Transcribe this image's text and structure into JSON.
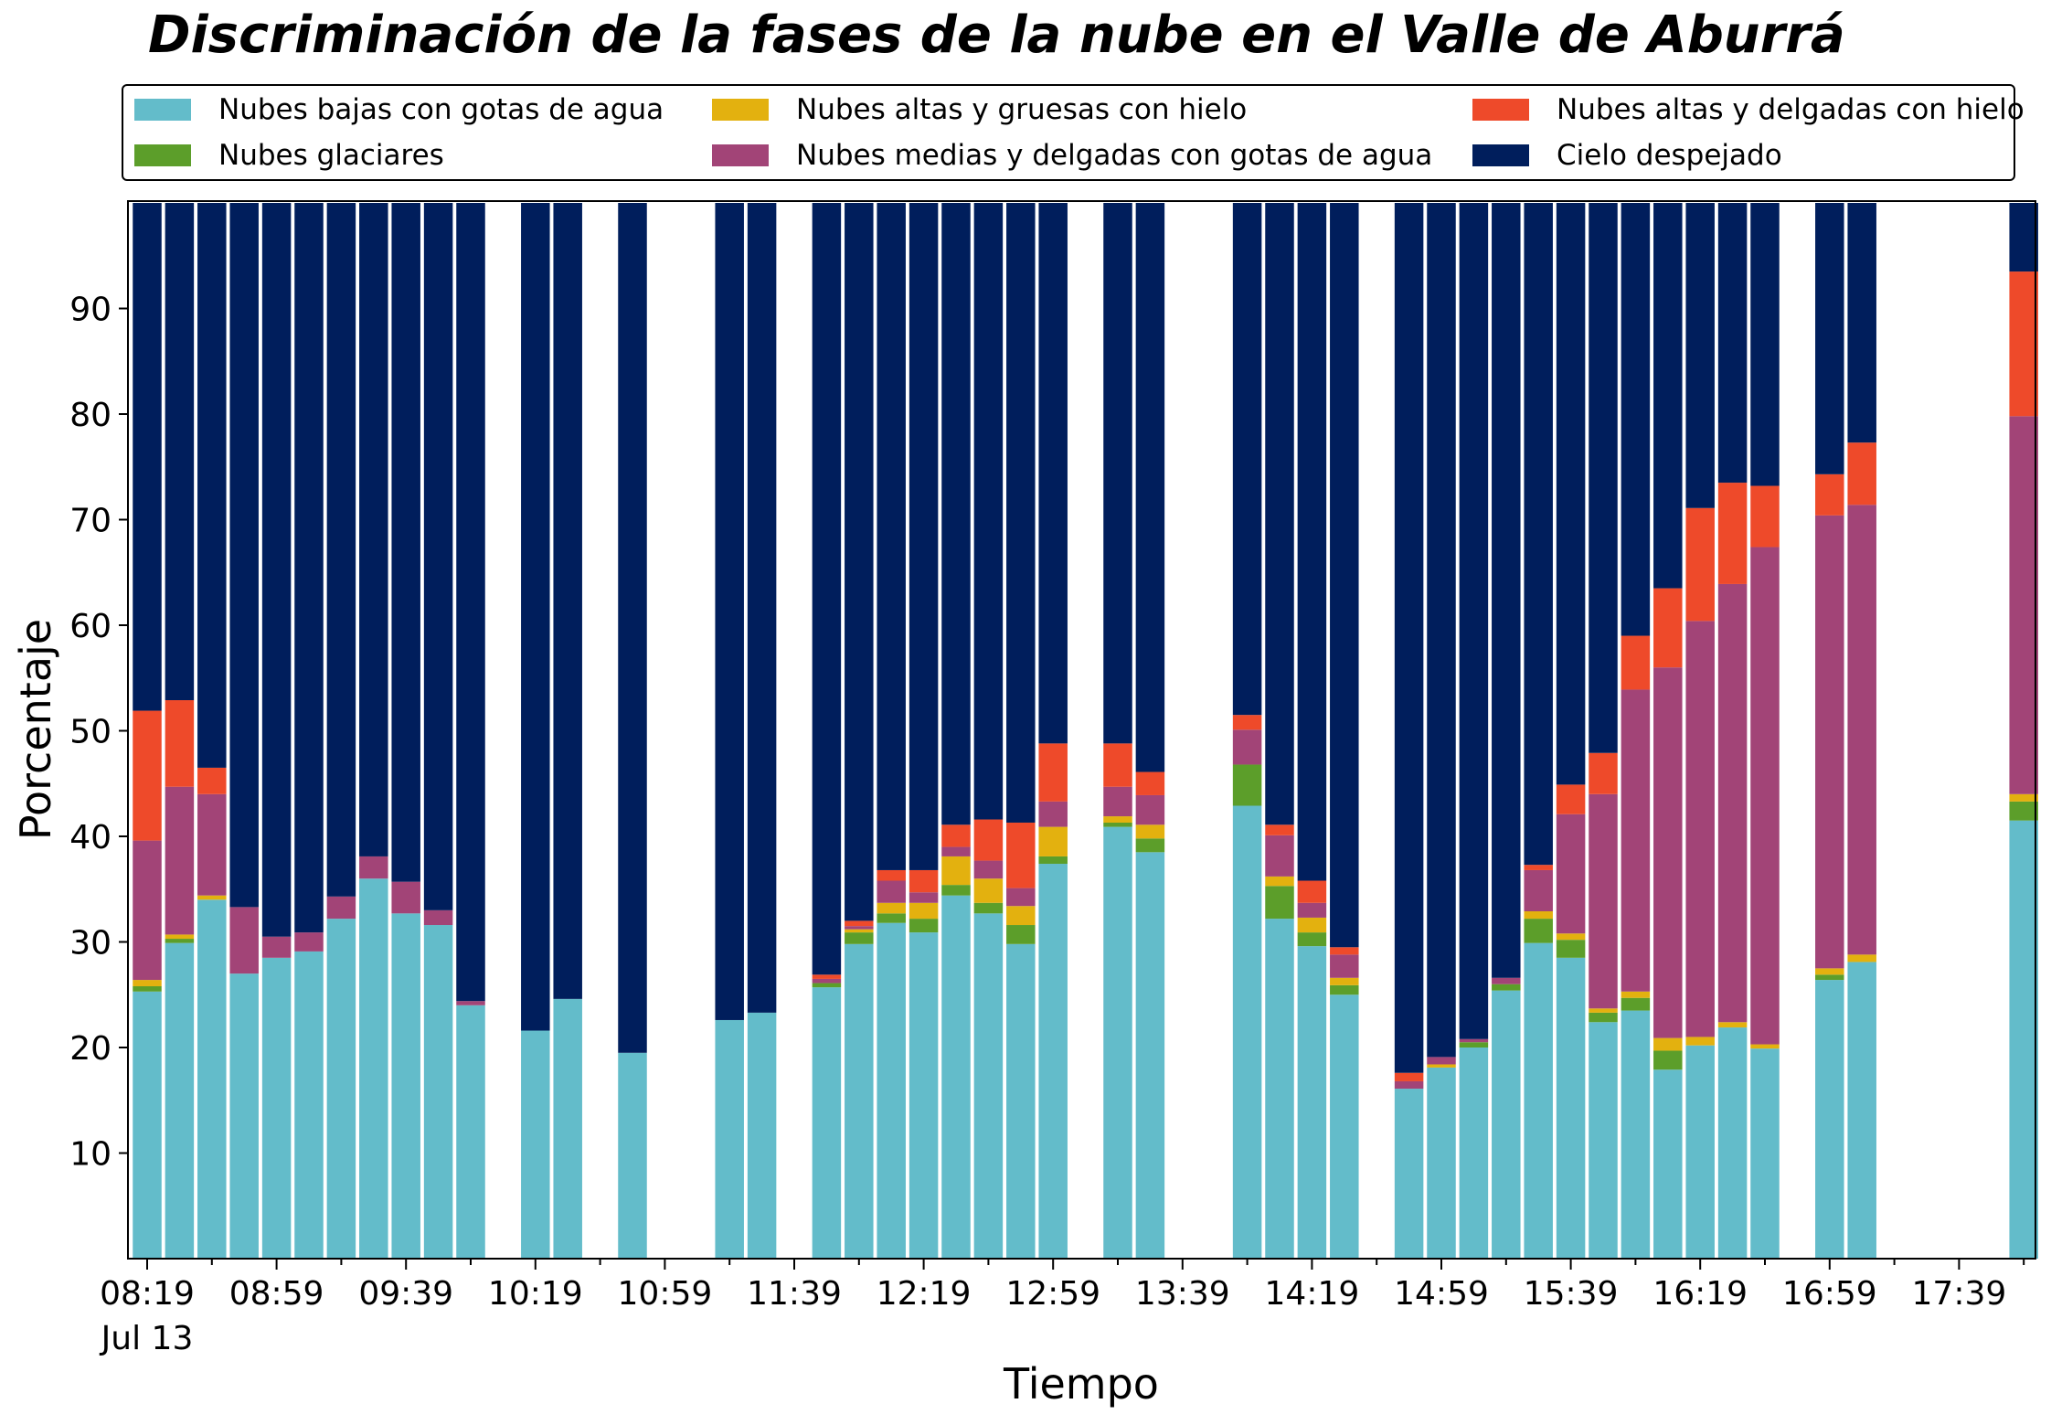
{
  "chart_data": {
    "type": "bar",
    "stacked": true,
    "title": "Discriminación de la fases de la nube en el Valle de Aburrá",
    "xlabel": "Tiempo",
    "ylabel": "Porcentaje",
    "ylim": [
      0,
      100
    ],
    "yticks": [
      10,
      20,
      30,
      40,
      50,
      60,
      70,
      80,
      90
    ],
    "x_tick_labels": [
      "08:19",
      "08:59",
      "09:39",
      "10:19",
      "10:59",
      "11:39",
      "12:19",
      "12:59",
      "13:39",
      "14:19",
      "14:59",
      "15:39",
      "16:19",
      "16:59",
      "17:39"
    ],
    "x_date_label": "Jul 13",
    "x_interval_minutes": 10,
    "legend_placement": "top, 3 columns",
    "grid": false,
    "series": [
      {
        "name": "Nubes bajas con gotas de agua",
        "color": "#63bcca"
      },
      {
        "name": "Nubes glaciares",
        "color": "#5c9e2a"
      },
      {
        "name": "Nubes altas y gruesas con hielo",
        "color": "#e3b10f"
      },
      {
        "name": "Nubes medias y delgadas con gotas de agua",
        "color": "#a24477"
      },
      {
        "name": "Nubes altas y delgadas con hielo",
        "color": "#ee4a2a"
      },
      {
        "name": "Cielo despejado",
        "color": "#001e5c"
      }
    ],
    "bars": [
      {
        "time": "08:19",
        "values": [
          25.3,
          0.5,
          0.6,
          13.2,
          12.3,
          48.1
        ]
      },
      {
        "time": "08:29",
        "values": [
          29.9,
          0.4,
          0.4,
          14.0,
          8.2,
          47.1
        ]
      },
      {
        "time": "08:39",
        "values": [
          34.0,
          0.0,
          0.4,
          9.6,
          2.5,
          53.5
        ]
      },
      {
        "time": "08:49",
        "values": [
          27.0,
          0.0,
          0.0,
          6.3,
          0.0,
          66.7
        ]
      },
      {
        "time": "08:59",
        "values": [
          28.5,
          0.0,
          0.0,
          2.0,
          0.0,
          69.5
        ]
      },
      {
        "time": "09:09",
        "values": [
          29.1,
          0.0,
          0.0,
          1.8,
          0.0,
          69.1
        ]
      },
      {
        "time": "09:19",
        "values": [
          32.2,
          0.0,
          0.0,
          2.1,
          0.0,
          65.7
        ]
      },
      {
        "time": "09:29",
        "values": [
          36.0,
          0.0,
          0.0,
          2.1,
          0.0,
          61.9
        ]
      },
      {
        "time": "09:39",
        "values": [
          32.7,
          0.0,
          0.0,
          3.0,
          0.0,
          64.3
        ]
      },
      {
        "time": "09:49",
        "values": [
          31.6,
          0.0,
          0.0,
          1.4,
          0.0,
          67.0
        ]
      },
      {
        "time": "09:59",
        "values": [
          24.0,
          0.0,
          0.0,
          0.4,
          0.0,
          75.6
        ]
      },
      {
        "time": "10:19",
        "values": [
          21.6,
          0.0,
          0.0,
          0.0,
          0.0,
          78.4
        ]
      },
      {
        "time": "10:29",
        "values": [
          24.6,
          0.0,
          0.0,
          0.0,
          0.0,
          75.4
        ]
      },
      {
        "time": "10:49",
        "values": [
          19.5,
          0.0,
          0.0,
          0.0,
          0.0,
          80.5
        ]
      },
      {
        "time": "11:19",
        "values": [
          22.6,
          0.0,
          0.0,
          0.0,
          0.0,
          77.4
        ]
      },
      {
        "time": "11:29",
        "values": [
          23.3,
          0.0,
          0.0,
          0.0,
          0.0,
          76.7
        ]
      },
      {
        "time": "11:49",
        "values": [
          25.7,
          0.4,
          0.0,
          0.4,
          0.4,
          73.1
        ]
      },
      {
        "time": "11:59",
        "values": [
          29.8,
          1.1,
          0.3,
          0.3,
          0.5,
          68.0
        ]
      },
      {
        "time": "12:09",
        "values": [
          31.8,
          0.9,
          1.0,
          2.1,
          1.0,
          63.2
        ]
      },
      {
        "time": "12:19",
        "values": [
          30.9,
          1.3,
          1.5,
          1.0,
          2.1,
          63.2
        ]
      },
      {
        "time": "12:29",
        "values": [
          34.4,
          1.0,
          2.7,
          0.9,
          2.1,
          58.9
        ]
      },
      {
        "time": "12:39",
        "values": [
          32.7,
          1.0,
          2.3,
          1.7,
          3.9,
          58.4
        ]
      },
      {
        "time": "12:49",
        "values": [
          29.8,
          1.8,
          1.8,
          1.7,
          6.2,
          58.7
        ]
      },
      {
        "time": "12:59",
        "values": [
          37.4,
          0.7,
          2.8,
          2.4,
          5.5,
          51.2
        ]
      },
      {
        "time": "13:19",
        "values": [
          40.9,
          0.4,
          0.6,
          2.8,
          4.1,
          51.2
        ]
      },
      {
        "time": "13:29",
        "values": [
          38.5,
          1.3,
          1.3,
          2.8,
          2.2,
          53.9
        ]
      },
      {
        "time": "13:59",
        "values": [
          42.9,
          3.9,
          0.0,
          3.3,
          1.4,
          48.5
        ]
      },
      {
        "time": "14:09",
        "values": [
          32.2,
          3.1,
          0.9,
          3.9,
          1.0,
          58.9
        ]
      },
      {
        "time": "14:19",
        "values": [
          29.6,
          1.3,
          1.4,
          1.4,
          2.1,
          64.2
        ]
      },
      {
        "time": "14:29",
        "values": [
          25.0,
          0.9,
          0.7,
          2.2,
          0.7,
          70.5
        ]
      },
      {
        "time": "14:49",
        "values": [
          16.1,
          0.0,
          0.0,
          0.7,
          0.8,
          82.4
        ]
      },
      {
        "time": "14:59",
        "values": [
          18.1,
          0.0,
          0.3,
          0.7,
          0.0,
          80.9
        ]
      },
      {
        "time": "15:09",
        "values": [
          20.0,
          0.5,
          0.0,
          0.3,
          0.0,
          79.2
        ]
      },
      {
        "time": "15:19",
        "values": [
          25.4,
          0.6,
          0.0,
          0.6,
          0.0,
          73.4
        ]
      },
      {
        "time": "15:29",
        "values": [
          29.9,
          2.3,
          0.7,
          3.9,
          0.5,
          62.7
        ]
      },
      {
        "time": "15:39",
        "values": [
          28.5,
          1.7,
          0.6,
          11.3,
          2.8,
          55.1
        ]
      },
      {
        "time": "15:49",
        "values": [
          22.4,
          0.9,
          0.4,
          20.3,
          3.9,
          52.1
        ]
      },
      {
        "time": "15:59",
        "values": [
          23.5,
          1.2,
          0.6,
          28.6,
          5.1,
          41.0
        ]
      },
      {
        "time": "16:09",
        "values": [
          17.9,
          1.8,
          1.2,
          35.1,
          7.5,
          36.5
        ]
      },
      {
        "time": "16:19",
        "values": [
          20.2,
          0.0,
          0.8,
          39.4,
          10.7,
          28.9
        ]
      },
      {
        "time": "16:29",
        "values": [
          21.9,
          0.0,
          0.5,
          41.5,
          9.6,
          26.5
        ]
      },
      {
        "time": "16:39",
        "values": [
          19.9,
          0.0,
          0.4,
          47.1,
          5.8,
          26.8
        ]
      },
      {
        "time": "16:59",
        "values": [
          26.4,
          0.5,
          0.6,
          42.9,
          3.9,
          25.7
        ]
      },
      {
        "time": "17:09",
        "values": [
          28.1,
          0.0,
          0.7,
          42.6,
          5.9,
          22.7
        ]
      },
      {
        "time": "17:59",
        "values": [
          41.5,
          1.8,
          0.7,
          35.8,
          13.7,
          6.5
        ]
      }
    ]
  }
}
